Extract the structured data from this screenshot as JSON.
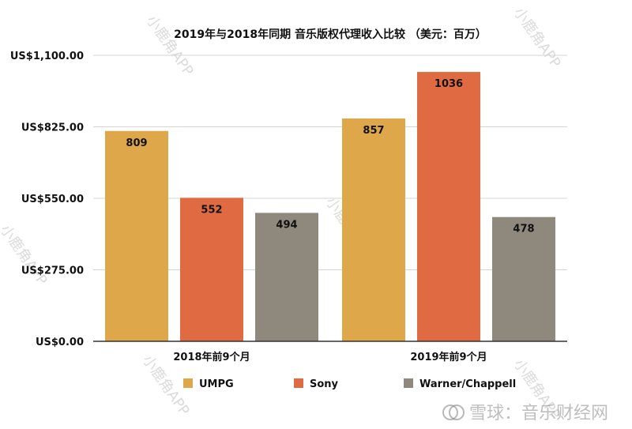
{
  "chart_data": {
    "type": "bar",
    "title": "2019年与2018年同期 音乐版权代理收入比较 （美元：百万）",
    "categories": [
      "2018年前9个月",
      "2019年前9个月"
    ],
    "series": [
      {
        "name": "UMPG",
        "values": [
          809,
          857
        ],
        "color": "#DEA74A"
      },
      {
        "name": "Sony",
        "values": [
          552,
          1036
        ],
        "color": "#E06B42"
      },
      {
        "name": "Warner/Chappell",
        "values": [
          494,
          478
        ],
        "color": "#8F887C"
      }
    ],
    "ylim": [
      0,
      1100
    ],
    "yticks": [
      0,
      275,
      550,
      825,
      1100
    ],
    "ytick_labels": [
      "US$0.00",
      "US$275.00",
      "US$550.00",
      "US$825.00",
      "US$1,100.00"
    ],
    "xlabel": "",
    "ylabel": "",
    "grid": true,
    "legend_position": "bottom"
  },
  "watermarks": {
    "app_text": "小鹿角APP",
    "footer_text": "雪球：音乐财经网"
  },
  "colors": {
    "grid": "#d4d4d4",
    "axis": "#333333"
  }
}
